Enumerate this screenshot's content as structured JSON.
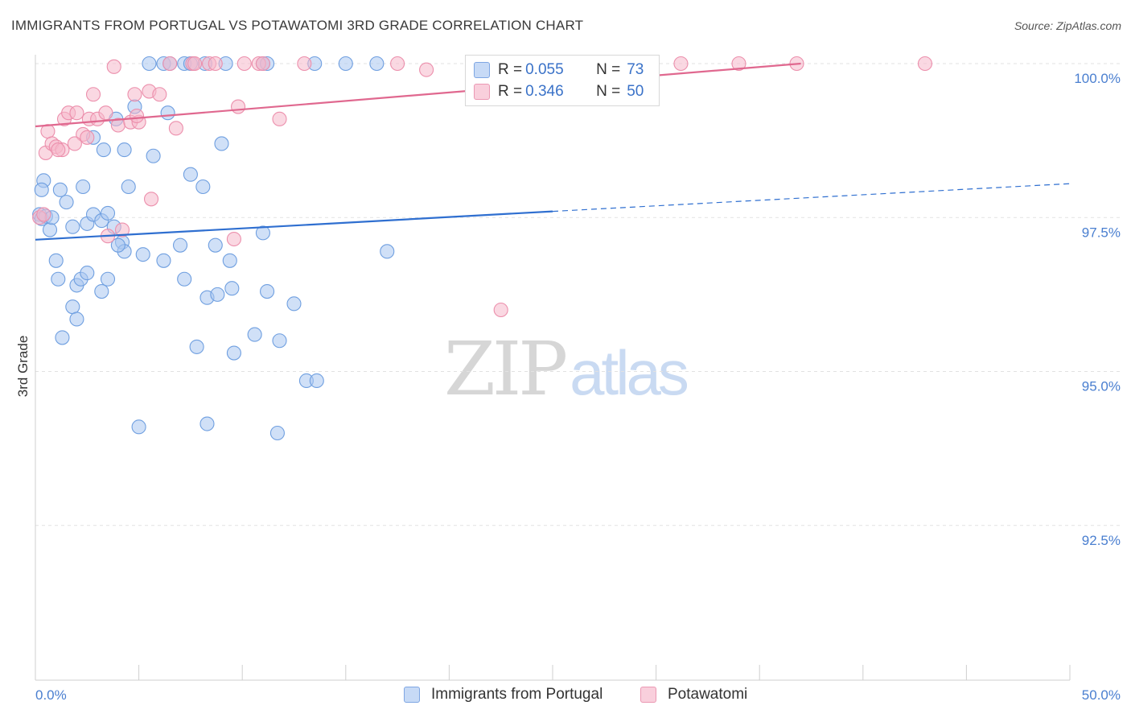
{
  "title": "IMMIGRANTS FROM PORTUGAL VS POTAWATOMI 3RD GRADE CORRELATION CHART",
  "source": "Source: ZipAtlas.com",
  "watermark": {
    "zip": "ZIP",
    "atlas": "atlas"
  },
  "legend": {
    "r_label": "R =",
    "n_label": "N =",
    "rows": [
      {
        "r": "0.055",
        "n": "73",
        "color": "#a9c6f0"
      },
      {
        "r": "0.346",
        "n": "50",
        "color": "#f5b8cb"
      }
    ]
  },
  "bottom_legend": [
    {
      "label": "Immigrants from Portugal",
      "color": "#a9c6f0"
    },
    {
      "label": "Potawatomi",
      "color": "#f5b8cb"
    }
  ],
  "chart_data": {
    "type": "scatter",
    "title": "IMMIGRANTS FROM PORTUGAL VS POTAWATOMI 3RD GRADE CORRELATION CHART",
    "xlabel": "",
    "ylabel": "3rd Grade",
    "xlim": [
      0,
      50
    ],
    "ylim": [
      90.0,
      100.4
    ],
    "x_tick_labels": [
      "0.0%",
      "50.0%"
    ],
    "y_ticks": [
      92.5,
      95.0,
      97.5,
      100.0
    ],
    "y_tick_labels": [
      "92.5%",
      "95.0%",
      "97.5%",
      "100.0%"
    ],
    "grid": true,
    "legend_position": "top-center",
    "series": [
      {
        "name": "Immigrants from Portugal",
        "color": "#6f9fe0",
        "fill": "#a9c6f0",
        "trend": {
          "x": [
            0,
            25
          ],
          "y": [
            97.14,
            97.6
          ],
          "dashed_to": [
            50,
            98.05
          ],
          "color": "#2f6fd0"
        },
        "points": [
          [
            5.5,
            100.0
          ],
          [
            6.2,
            100.0
          ],
          [
            6.5,
            100.0
          ],
          [
            7.2,
            100.0
          ],
          [
            7.5,
            100.0
          ],
          [
            8.2,
            100.0
          ],
          [
            9.2,
            100.0
          ],
          [
            11.0,
            100.0
          ],
          [
            11.2,
            100.0
          ],
          [
            13.5,
            100.0
          ],
          [
            15.0,
            100.0
          ],
          [
            16.5,
            100.0
          ],
          [
            0.2,
            97.55
          ],
          [
            0.3,
            97.48
          ],
          [
            0.5,
            97.52
          ],
          [
            0.7,
            97.3
          ],
          [
            0.8,
            97.5
          ],
          [
            0.4,
            98.1
          ],
          [
            0.3,
            97.95
          ],
          [
            1.2,
            97.95
          ],
          [
            1.5,
            97.75
          ],
          [
            2.3,
            98.0
          ],
          [
            1.8,
            97.35
          ],
          [
            2.5,
            97.4
          ],
          [
            2.8,
            97.55
          ],
          [
            3.2,
            97.45
          ],
          [
            3.5,
            97.57
          ],
          [
            3.8,
            97.35
          ],
          [
            4.2,
            97.1
          ],
          [
            4.3,
            96.95
          ],
          [
            4.0,
            97.05
          ],
          [
            2.8,
            98.8
          ],
          [
            3.3,
            98.6
          ],
          [
            4.3,
            98.6
          ],
          [
            4.5,
            98.0
          ],
          [
            5.7,
            98.5
          ],
          [
            3.9,
            99.1
          ],
          [
            4.8,
            99.3
          ],
          [
            6.4,
            99.2
          ],
          [
            7.5,
            98.2
          ],
          [
            8.1,
            98.0
          ],
          [
            9.0,
            98.7
          ],
          [
            7.0,
            97.05
          ],
          [
            8.7,
            97.05
          ],
          [
            9.4,
            96.8
          ],
          [
            11.0,
            97.25
          ],
          [
            17.0,
            96.95
          ],
          [
            1.0,
            96.8
          ],
          [
            1.1,
            96.5
          ],
          [
            2.0,
            96.4
          ],
          [
            2.2,
            96.5
          ],
          [
            2.5,
            96.6
          ],
          [
            3.2,
            96.3
          ],
          [
            3.5,
            96.5
          ],
          [
            5.2,
            96.9
          ],
          [
            6.2,
            96.8
          ],
          [
            7.2,
            96.5
          ],
          [
            8.3,
            96.2
          ],
          [
            8.8,
            96.25
          ],
          [
            9.5,
            96.35
          ],
          [
            11.2,
            96.3
          ],
          [
            12.5,
            96.1
          ],
          [
            1.8,
            96.05
          ],
          [
            2.0,
            95.85
          ],
          [
            1.3,
            95.55
          ],
          [
            10.6,
            95.6
          ],
          [
            11.8,
            95.5
          ],
          [
            7.8,
            95.4
          ],
          [
            9.6,
            95.3
          ],
          [
            13.1,
            94.85
          ],
          [
            13.6,
            94.85
          ],
          [
            5.0,
            94.1
          ],
          [
            8.3,
            94.15
          ],
          [
            11.7,
            94.0
          ]
        ]
      },
      {
        "name": "Potawatomi",
        "color": "#ec8fac",
        "fill": "#f5b8cb",
        "trend": {
          "x": [
            0,
            37
          ],
          "y": [
            98.98,
            100.0
          ],
          "color": "#e0688f"
        },
        "points": [
          [
            0.2,
            97.5
          ],
          [
            0.5,
            98.55
          ],
          [
            0.6,
            98.9
          ],
          [
            0.8,
            98.7
          ],
          [
            1.4,
            99.1
          ],
          [
            1.6,
            99.2
          ],
          [
            2.0,
            99.2
          ],
          [
            2.3,
            98.85
          ],
          [
            2.6,
            99.1
          ],
          [
            3.0,
            99.1
          ],
          [
            3.4,
            99.2
          ],
          [
            4.0,
            99.0
          ],
          [
            4.6,
            99.05
          ],
          [
            5.0,
            99.05
          ],
          [
            1.0,
            98.65
          ],
          [
            1.3,
            98.6
          ],
          [
            2.8,
            99.5
          ],
          [
            3.8,
            99.95
          ],
          [
            4.8,
            99.5
          ],
          [
            5.5,
            99.55
          ],
          [
            6.0,
            99.5
          ],
          [
            6.8,
            98.95
          ],
          [
            9.8,
            99.3
          ],
          [
            11.8,
            99.1
          ],
          [
            6.5,
            100.0
          ],
          [
            7.6,
            100.0
          ],
          [
            7.7,
            100.0
          ],
          [
            8.4,
            100.0
          ],
          [
            8.7,
            100.0
          ],
          [
            10.1,
            100.0
          ],
          [
            10.8,
            100.0
          ],
          [
            11.0,
            100.0
          ],
          [
            13.0,
            100.0
          ],
          [
            17.5,
            100.0
          ],
          [
            18.9,
            99.9
          ],
          [
            26.5,
            100.0
          ],
          [
            31.2,
            100.0
          ],
          [
            34.0,
            100.0
          ],
          [
            36.8,
            100.0
          ],
          [
            43.0,
            100.0
          ],
          [
            3.5,
            97.2
          ],
          [
            4.2,
            97.3
          ],
          [
            5.6,
            97.8
          ],
          [
            9.6,
            97.15
          ],
          [
            22.5,
            96.0
          ],
          [
            4.9,
            99.15
          ],
          [
            1.9,
            98.7
          ],
          [
            0.4,
            97.55
          ],
          [
            1.1,
            98.6
          ],
          [
            2.5,
            98.8
          ]
        ]
      }
    ]
  }
}
